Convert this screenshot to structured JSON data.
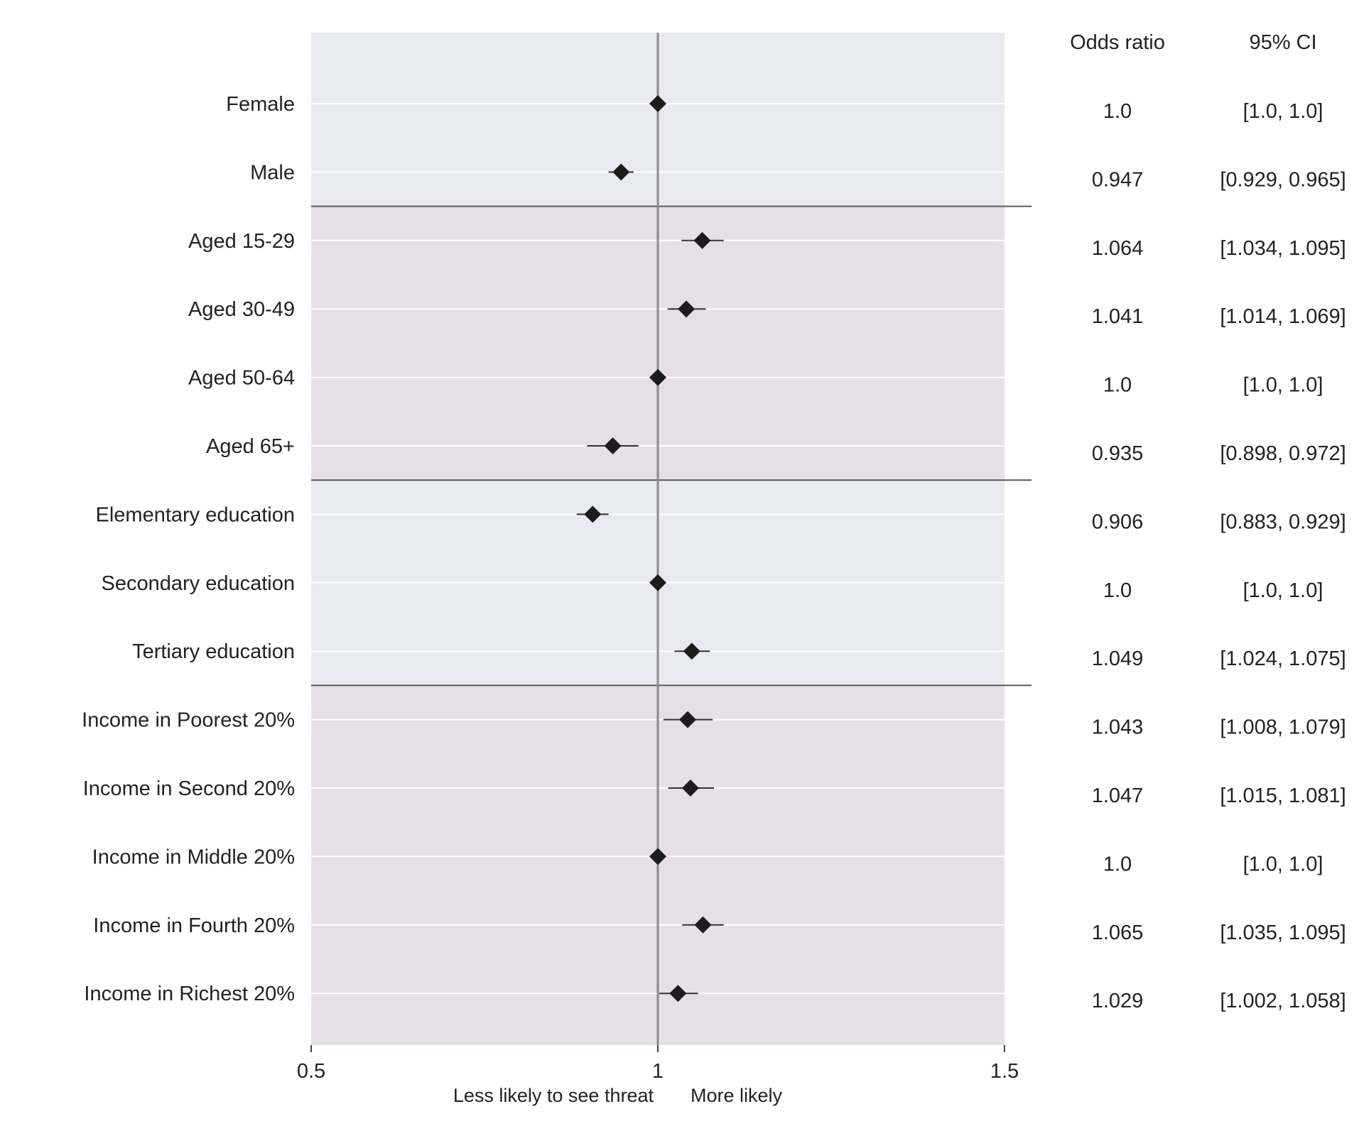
{
  "chart_data": {
    "type": "forest",
    "title": "",
    "xlim": [
      0.5,
      1.5
    ],
    "reference_line": 1,
    "grid": true,
    "x_ticks": [
      {
        "value": 0.5,
        "label": "0.5"
      },
      {
        "value": 1,
        "label": "1"
      },
      {
        "value": 1.5,
        "label": "1.5"
      }
    ],
    "x_annotations": {
      "less": "Less likely to see threat",
      "more": "More likely"
    },
    "table_headers": {
      "odds_ratio": "Odds ratio",
      "ci": "95% CI"
    },
    "groups": [
      {
        "start": 0,
        "end": 1,
        "color": "#e9e9f1"
      },
      {
        "start": 2,
        "end": 5,
        "color": "#e6dfe5"
      },
      {
        "start": 6,
        "end": 8,
        "color": "#e9e9f1"
      },
      {
        "start": 9,
        "end": 13,
        "color": "#e6dfe5"
      }
    ],
    "rows": [
      {
        "label": "Female",
        "or": 1.0,
        "lo": 1.0,
        "hi": 1.0,
        "or_text": "1.0",
        "ci_text": "[1.0, 1.0]"
      },
      {
        "label": "Male",
        "or": 0.947,
        "lo": 0.929,
        "hi": 0.965,
        "or_text": "0.947",
        "ci_text": "[0.929, 0.965]"
      },
      {
        "label": "Aged 15-29",
        "or": 1.064,
        "lo": 1.034,
        "hi": 1.095,
        "or_text": "1.064",
        "ci_text": "[1.034, 1.095]"
      },
      {
        "label": "Aged 30-49",
        "or": 1.041,
        "lo": 1.014,
        "hi": 1.069,
        "or_text": "1.041",
        "ci_text": "[1.014, 1.069]"
      },
      {
        "label": "Aged 50-64",
        "or": 1.0,
        "lo": 1.0,
        "hi": 1.0,
        "or_text": "1.0",
        "ci_text": "[1.0, 1.0]"
      },
      {
        "label": "Aged 65+",
        "or": 0.935,
        "lo": 0.898,
        "hi": 0.972,
        "or_text": "0.935",
        "ci_text": "[0.898, 0.972]"
      },
      {
        "label": "Elementary education",
        "or": 0.906,
        "lo": 0.883,
        "hi": 0.929,
        "or_text": "0.906",
        "ci_text": "[0.883, 0.929]"
      },
      {
        "label": "Secondary education",
        "or": 1.0,
        "lo": 1.0,
        "hi": 1.0,
        "or_text": "1.0",
        "ci_text": "[1.0, 1.0]"
      },
      {
        "label": "Tertiary education",
        "or": 1.049,
        "lo": 1.024,
        "hi": 1.075,
        "or_text": "1.049",
        "ci_text": "[1.024, 1.075]"
      },
      {
        "label": "Income in Poorest 20%",
        "or": 1.043,
        "lo": 1.008,
        "hi": 1.079,
        "or_text": "1.043",
        "ci_text": "[1.008, 1.079]"
      },
      {
        "label": "Income in Second 20%",
        "or": 1.047,
        "lo": 1.015,
        "hi": 1.081,
        "or_text": "1.047",
        "ci_text": "[1.015, 1.081]"
      },
      {
        "label": "Income in Middle 20%",
        "or": 1.0,
        "lo": 1.0,
        "hi": 1.0,
        "or_text": "1.0",
        "ci_text": "[1.0, 1.0]"
      },
      {
        "label": "Income in Fourth 20%",
        "or": 1.065,
        "lo": 1.035,
        "hi": 1.095,
        "or_text": "1.065",
        "ci_text": "[1.035, 1.095]"
      },
      {
        "label": "Income in Richest 20%",
        "or": 1.029,
        "lo": 1.002,
        "hi": 1.058,
        "or_text": "1.029",
        "ci_text": "[1.002, 1.058]"
      }
    ]
  }
}
